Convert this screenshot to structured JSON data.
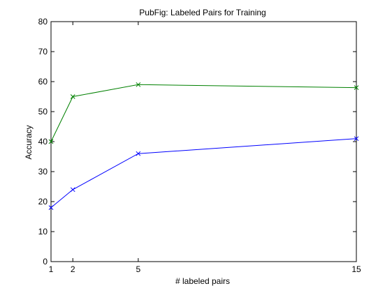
{
  "chart_data": {
    "type": "line",
    "title": "PubFig: Labeled Pairs for Training",
    "xlabel": "# labeled pairs",
    "ylabel": "Accuracy",
    "xlim": [
      1,
      15
    ],
    "ylim": [
      0,
      80
    ],
    "xticks": [
      1,
      2,
      5,
      15
    ],
    "yticks": [
      0,
      10,
      20,
      30,
      40,
      50,
      60,
      70,
      80
    ],
    "grid": false,
    "legend": "none",
    "marker": "x",
    "x": [
      1,
      2,
      5,
      15
    ],
    "series": [
      {
        "color": "#008000",
        "values": [
          40,
          55,
          59,
          58
        ]
      },
      {
        "color": "#0000ff",
        "values": [
          18,
          24,
          36,
          41
        ]
      }
    ]
  }
}
